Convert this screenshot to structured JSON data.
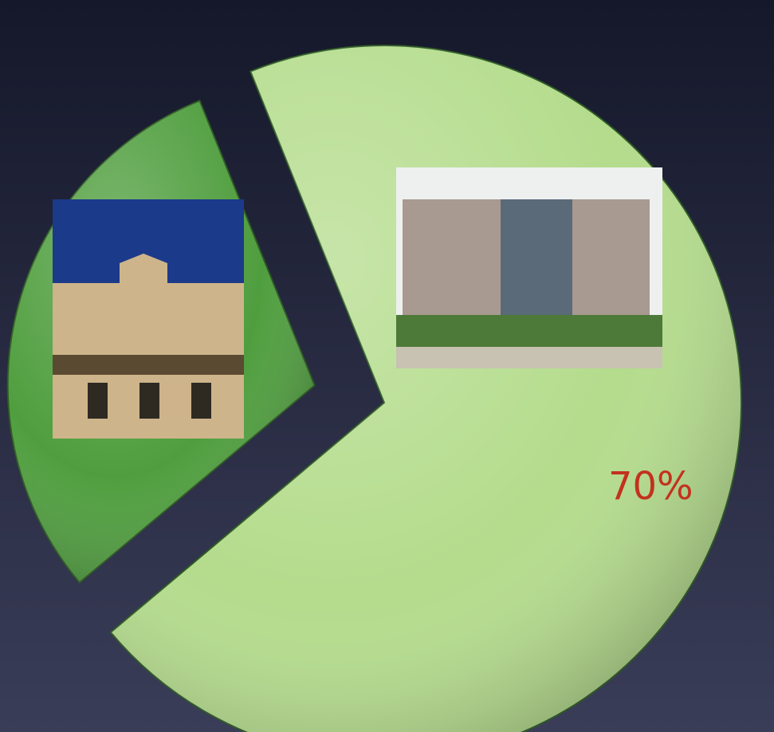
{
  "chart_data": {
    "type": "pie",
    "values": [
      30,
      70
    ],
    "value_labels": [
      null,
      "70%"
    ],
    "colors": [
      "#4f9e3e",
      "#b4dc8c"
    ],
    "label_color": "#c2321e"
  }
}
